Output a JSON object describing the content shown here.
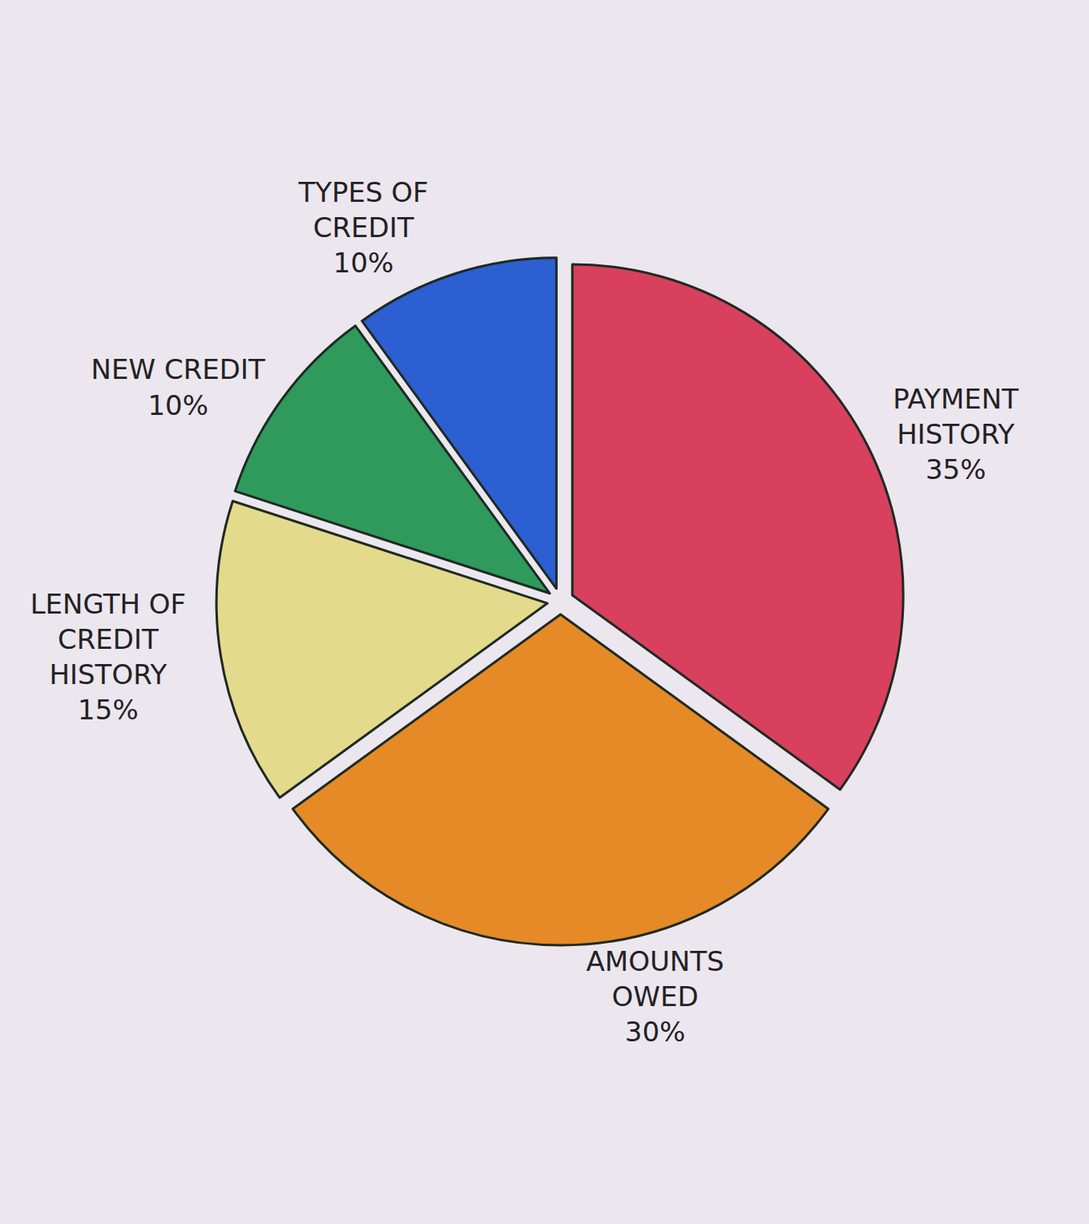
{
  "chart_data": {
    "type": "pie",
    "categories": [
      "PAYMENT HISTORY",
      "AMOUNTS OWED",
      "LENGTH OF CREDIT HISTORY",
      "NEW CREDIT",
      "TYPES OF CREDIT"
    ],
    "values": [
      35,
      30,
      15,
      10,
      10
    ],
    "value_labels": [
      "35%",
      "30%",
      "15%",
      "10%",
      "10%"
    ],
    "colors": [
      "#d9405e",
      "#e58a26",
      "#e3da8c",
      "#2f9a5c",
      "#2c5fd2"
    ],
    "data_labels": true
  }
}
